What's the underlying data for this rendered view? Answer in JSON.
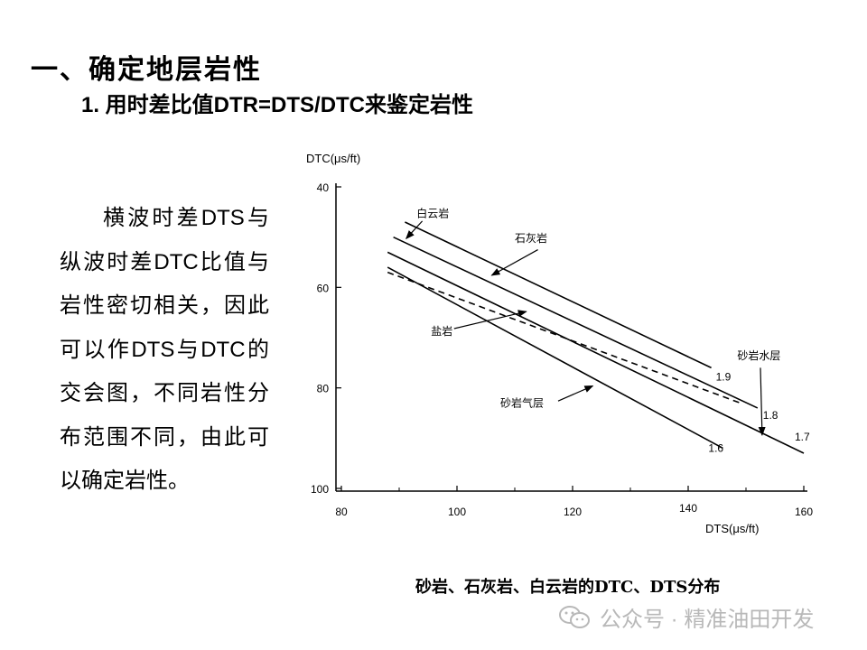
{
  "page": {
    "heading": "一、确定地层岩性",
    "subheading": "1. 用时差比值DTR=DTS/DTC来鉴定岩性",
    "paragraph": "横波时差DTS与纵波时差DTC比值与岩性密切相关，因此可以作DTS与DTC的交会图，不同岩性分布范围不同，由此可以确定岩性。",
    "caption": "砂岩、石灰岩、白云岩的DTC、DTS分布",
    "watermark": "公众号 · 精准油田开发"
  },
  "chart_data": {
    "type": "line",
    "xlabel": "DTS(μs/ft)",
    "ylabel": "DTC(μs/ft)",
    "xlim": [
      80,
      160
    ],
    "ylim": [
      40,
      100
    ],
    "y_inverted": true,
    "x_ticks": [
      80,
      100,
      120,
      140,
      160
    ],
    "y_ticks": [
      40,
      60,
      80,
      100
    ],
    "series": [
      {
        "name": "白云岩",
        "end_label": "1.9",
        "style": "solid",
        "points": [
          [
            91,
            47
          ],
          [
            144,
            76
          ]
        ]
      },
      {
        "name": "石灰岩",
        "end_label": "1.8",
        "style": "solid",
        "points": [
          [
            89,
            50
          ],
          [
            152,
            84
          ]
        ]
      },
      {
        "name": "砂岩水层",
        "end_label": "1.7",
        "style": "solid",
        "points": [
          [
            88,
            53
          ],
          [
            160,
            93
          ]
        ]
      },
      {
        "name": "砂岩气层",
        "end_label": "1.6",
        "style": "solid",
        "points": [
          [
            88,
            56
          ],
          [
            146,
            92
          ]
        ]
      },
      {
        "name": "盐岩",
        "end_label": "",
        "style": "dashed",
        "points": [
          [
            88,
            57
          ],
          [
            149,
            83
          ]
        ]
      }
    ],
    "annotations": [
      {
        "text": "白云岩",
        "arrow_to_series": "白云岩"
      },
      {
        "text": "石灰岩",
        "arrow_to_series": "石灰岩"
      },
      {
        "text": "盐岩",
        "arrow_to_series": "盐岩"
      },
      {
        "text": "砂岩气层",
        "arrow_to_series": "砂岩气层"
      },
      {
        "text": "砂岩水层",
        "arrow_to_series": "砂岩水层"
      }
    ],
    "grid": false
  }
}
